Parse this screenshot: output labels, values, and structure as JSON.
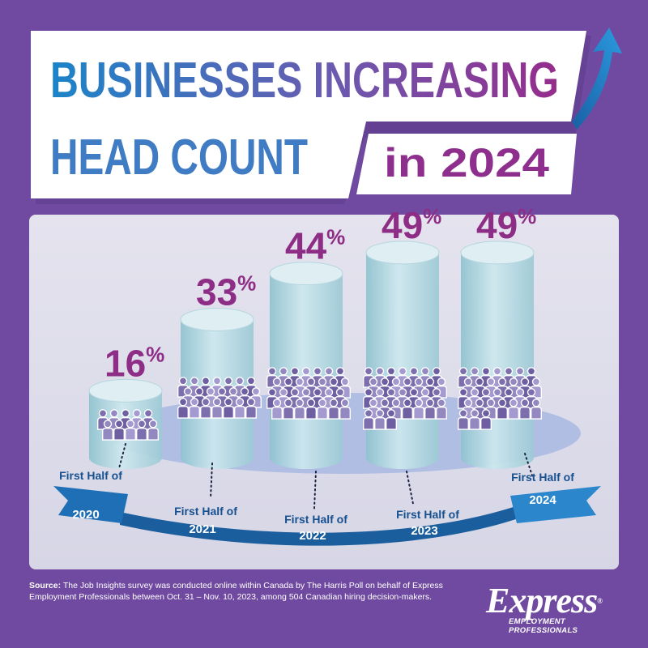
{
  "header": {
    "title_line1": "BUSINESSES INCREASING",
    "title_line2": "HEAD COUNT",
    "title_badge": "in 2024"
  },
  "chart_data": {
    "type": "bar",
    "categories": [
      "First Half of 2020",
      "First Half of 2021",
      "First Half of 2022",
      "First Half of 2023",
      "First Half of 2024"
    ],
    "category_lines": [
      [
        "First Half of",
        "2020"
      ],
      [
        "First Half of",
        "2021"
      ],
      [
        "First Half of",
        "2022"
      ],
      [
        "First Half of",
        "2023"
      ],
      [
        "First Half of",
        "2024"
      ]
    ],
    "values": [
      16,
      33,
      44,
      49,
      49
    ],
    "value_labels": [
      "16",
      "33",
      "44",
      "49",
      "49"
    ],
    "value_suffix": "%",
    "ylim": [
      0,
      60
    ],
    "title": "",
    "xlabel": "",
    "ylabel": "",
    "grid": false
  },
  "footer": {
    "source_label": "Source:",
    "source_text": "The Job Insights survey was conducted online within Canada by The Harris Poll on behalf of Express Employment Professionals between Oct. 31 – Nov. 10, 2023, among 504 Canadian hiring decision-makers."
  },
  "logo": {
    "wordmark": "Express",
    "registered": "®",
    "tagline": "EMPLOYMENT PROFESSIONALS"
  },
  "colors": {
    "background": "#6f4aa0",
    "title_blue": "#1b7cc3",
    "title_purple": "#8e2f8e",
    "value_purple": "#8e2d86",
    "cylinder": "#a9d3dd",
    "people": "#8a7bb3",
    "ribbon": "#1a5e9e",
    "ribbon_light": "#2b86cc"
  }
}
